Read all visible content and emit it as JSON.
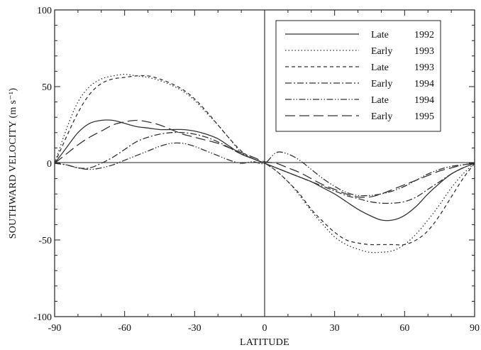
{
  "chart_data": {
    "type": "line",
    "title": "",
    "xlabel": "LATITUDE",
    "ylabel": "SOUTHWARD VELOCITY (m s⁻¹)",
    "xlim": [
      -90,
      90
    ],
    "ylim": [
      -100,
      100
    ],
    "xticks": [
      -90,
      -60,
      -30,
      0,
      30,
      60,
      90
    ],
    "yticks": [
      -100,
      -50,
      0,
      50,
      100
    ],
    "grid": false,
    "zero_lines": true,
    "legend_position": "top-right",
    "x": [
      -90,
      -85,
      -80,
      -75,
      -70,
      -65,
      -60,
      -55,
      -50,
      -45,
      -40,
      -35,
      -30,
      -25,
      -20,
      -15,
      -10,
      -5,
      0,
      5,
      10,
      15,
      20,
      25,
      30,
      35,
      40,
      45,
      50,
      55,
      60,
      65,
      70,
      75,
      80,
      85,
      90
    ],
    "series": [
      {
        "name": "Late",
        "year": "1992",
        "dash": "",
        "values": [
          0,
          10,
          20,
          26,
          28,
          28,
          26,
          24,
          23,
          22,
          22,
          22,
          21,
          19,
          16,
          11,
          6,
          3,
          0,
          -3,
          -6,
          -9,
          -12,
          -16,
          -20,
          -25,
          -30,
          -34,
          -37,
          -37,
          -34,
          -28,
          -20,
          -13,
          -7,
          -3,
          0
        ]
      },
      {
        "name": "Early",
        "year": "1993",
        "dash": "1.5 3",
        "values": [
          0,
          22,
          40,
          50,
          55,
          57,
          58,
          57,
          56,
          54,
          51,
          47,
          41,
          33,
          25,
          16,
          7,
          3,
          0,
          -5,
          -12,
          -21,
          -31,
          -40,
          -48,
          -53,
          -56,
          -58,
          -58,
          -57,
          -53,
          -46,
          -37,
          -27,
          -16,
          -7,
          0
        ]
      },
      {
        "name": "Late",
        "year": "1993",
        "dash": "5 4",
        "values": [
          0,
          17,
          33,
          45,
          52,
          55,
          56,
          57,
          57,
          55,
          52,
          48,
          42,
          34,
          25,
          16,
          8,
          3,
          0,
          -5,
          -12,
          -20,
          -30,
          -38,
          -45,
          -50,
          -52,
          -53,
          -53,
          -53,
          -53,
          -50,
          -44,
          -34,
          -22,
          -10,
          0
        ]
      },
      {
        "name": "Early",
        "year": "1994",
        "dash": "9 3 2 3",
        "values": [
          0,
          -1,
          -3,
          -3,
          0,
          4,
          9,
          14,
          17,
          19,
          20,
          20,
          19,
          17,
          14,
          10,
          6,
          3,
          0,
          -3,
          -6,
          -9,
          -12,
          -15,
          -18,
          -21,
          -23,
          -25,
          -26,
          -26,
          -25,
          -22,
          -17,
          -12,
          -7,
          -3,
          0
        ]
      },
      {
        "name": "Late",
        "year": "1994",
        "dash": "9 2.5 1.5 2.5 1.5 2.5",
        "values": [
          0,
          -1,
          -3,
          -4,
          -3,
          -1,
          2,
          5,
          8,
          11,
          13,
          13,
          11,
          8,
          5,
          2,
          0,
          1,
          0,
          7,
          6,
          2,
          -4,
          -10,
          -15,
          -19,
          -21,
          -21,
          -20,
          -18,
          -15,
          -11,
          -7,
          -4,
          -2,
          -1,
          0
        ]
      },
      {
        "name": "Early",
        "year": "1995",
        "dash": "14 6",
        "values": [
          0,
          6,
          12,
          17,
          21,
          25,
          27,
          28,
          27,
          25,
          22,
          19,
          17,
          15,
          13,
          10,
          7,
          4,
          1,
          0,
          -3,
          -6,
          -10,
          -14,
          -17,
          -20,
          -22,
          -22,
          -20,
          -17,
          -14,
          -11,
          -8,
          -5,
          -3,
          -1,
          0
        ]
      }
    ]
  }
}
